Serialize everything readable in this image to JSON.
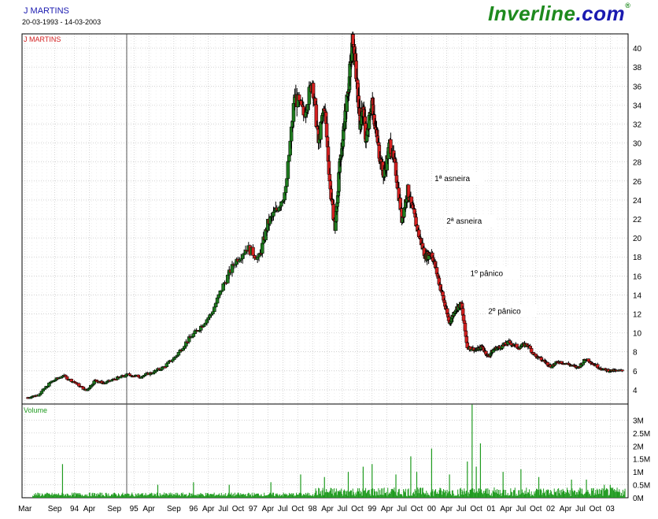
{
  "header": {
    "title": "J MARTINS",
    "date_range": "20-03-1993 - 14-03-2003",
    "logo_main": "Inverline",
    "logo_dot": ".com",
    "logo_mark": "®"
  },
  "chart_data": [
    {
      "type": "candlestick",
      "title": "J MARTINS",
      "ylim": [
        2.5,
        41.5
      ],
      "y_ticks": [
        "4",
        "6",
        "8",
        "10",
        "12",
        "14",
        "16",
        "18",
        "20",
        "22",
        "24",
        "26",
        "28",
        "30",
        "32",
        "34",
        "36",
        "38",
        "40"
      ],
      "x": [
        1993.22,
        1993.4,
        1993.6,
        1993.8,
        1994.0,
        1994.2,
        1994.35,
        1994.5,
        1994.7,
        1994.9,
        1995.1,
        1995.3,
        1995.5,
        1995.7,
        1995.9,
        1996.1,
        1996.3,
        1996.5,
        1996.7,
        1996.9,
        1997.1,
        1997.25,
        1997.4,
        1997.55,
        1997.7,
        1997.85,
        1998.0,
        1998.1,
        1998.2,
        1998.3,
        1998.38,
        1998.45,
        1998.5,
        1998.55,
        1998.62,
        1998.68,
        1998.75,
        1998.8,
        1998.85,
        1998.9,
        1999.0,
        1999.05,
        1999.12,
        1999.2,
        1999.3,
        1999.4,
        1999.5,
        1999.6,
        1999.7,
        1999.8,
        1999.9,
        2000.0,
        2000.1,
        2000.2,
        2000.3,
        2000.4,
        2000.5,
        2000.6,
        2000.75,
        2000.85,
        2000.95,
        2001.05,
        2001.15,
        2001.3,
        2001.45,
        2001.6,
        2001.75,
        2001.9,
        2002.0,
        2002.15,
        2002.3,
        2002.45,
        2002.6,
        2002.75,
        2002.9,
        2003.05,
        2003.2
      ],
      "close": [
        3.2,
        3.5,
        4.8,
        5.5,
        4.8,
        3.9,
        5.0,
        4.7,
        5.2,
        5.6,
        5.4,
        5.8,
        6.4,
        7.5,
        9.2,
        10.5,
        12.0,
        15.0,
        17.5,
        19.0,
        17.8,
        21.5,
        23.0,
        25.0,
        35.0,
        33.0,
        36.5,
        30.0,
        34.0,
        25.0,
        21.0,
        27.0,
        30.0,
        33.0,
        37.0,
        41.0,
        36.0,
        32.0,
        34.0,
        30.0,
        34.5,
        32.0,
        29.0,
        26.5,
        30.0,
        27.0,
        22.0,
        25.0,
        22.5,
        20.0,
        18.0,
        18.5,
        16.0,
        13.5,
        11.0,
        12.5,
        13.0,
        8.5,
        8.2,
        8.5,
        7.5,
        8.3,
        8.5,
        9.0,
        8.5,
        8.8,
        7.5,
        7.0,
        6.5,
        7.0,
        6.7,
        6.3,
        7.3,
        6.6,
        6.1,
        6.0,
        6.0
      ],
      "volume_panel": {
        "label": "Volume",
        "y_ticks": [
          "0M",
          "0.5M",
          "1M",
          "1.5M",
          "2M",
          "2.5M",
          "3M"
        ],
        "ylim": [
          0,
          3.5
        ],
        "spikes": [
          [
            1993.8,
            1.3
          ],
          [
            1995.4,
            0.5
          ],
          [
            1996.0,
            0.6
          ],
          [
            1996.6,
            0.5
          ],
          [
            1997.3,
            0.6
          ],
          [
            1997.8,
            0.9
          ],
          [
            1998.2,
            0.8
          ],
          [
            1998.6,
            1.0
          ],
          [
            1998.85,
            1.2
          ],
          [
            1999.0,
            1.3
          ],
          [
            1999.4,
            0.9
          ],
          [
            1999.65,
            1.6
          ],
          [
            1999.75,
            1.0
          ],
          [
            2000.0,
            1.9
          ],
          [
            2000.3,
            0.9
          ],
          [
            2000.6,
            1.4
          ],
          [
            2000.68,
            3.6
          ],
          [
            2000.75,
            1.2
          ],
          [
            2000.82,
            2.1
          ],
          [
            2001.2,
            1.0
          ],
          [
            2001.5,
            1.1
          ],
          [
            2001.8,
            0.8
          ],
          [
            2002.35,
            0.7
          ],
          [
            2002.6,
            0.7
          ],
          [
            2002.9,
            0.5
          ],
          [
            2003.0,
            0.5
          ]
        ]
      },
      "x_tick_labels": [
        {
          "x": 1993.17,
          "label": "Mar"
        },
        {
          "x": 1993.67,
          "label": "Sep"
        },
        {
          "x": 1994.0,
          "label": "94"
        },
        {
          "x": 1994.25,
          "label": "Apr"
        },
        {
          "x": 1994.67,
          "label": "Sep"
        },
        {
          "x": 1995.0,
          "label": "95"
        },
        {
          "x": 1995.25,
          "label": "Apr"
        },
        {
          "x": 1995.67,
          "label": "Sep"
        },
        {
          "x": 1996.0,
          "label": "96"
        },
        {
          "x": 1996.25,
          "label": "Apr"
        },
        {
          "x": 1996.5,
          "label": "Jul"
        },
        {
          "x": 1996.75,
          "label": "Oct"
        },
        {
          "x": 1997.0,
          "label": "97"
        },
        {
          "x": 1997.25,
          "label": "Apr"
        },
        {
          "x": 1997.5,
          "label": "Jul"
        },
        {
          "x": 1997.75,
          "label": "Oct"
        },
        {
          "x": 1998.0,
          "label": "98"
        },
        {
          "x": 1998.25,
          "label": "Apr"
        },
        {
          "x": 1998.5,
          "label": "Jul"
        },
        {
          "x": 1998.75,
          "label": "Oct"
        },
        {
          "x": 1999.0,
          "label": "99"
        },
        {
          "x": 1999.25,
          "label": "Apr"
        },
        {
          "x": 1999.5,
          "label": "Jul"
        },
        {
          "x": 1999.75,
          "label": "Oct"
        },
        {
          "x": 2000.0,
          "label": "00"
        },
        {
          "x": 2000.25,
          "label": "Apr"
        },
        {
          "x": 2000.5,
          "label": "Jul"
        },
        {
          "x": 2000.75,
          "label": "Oct"
        },
        {
          "x": 2001.0,
          "label": "01"
        },
        {
          "x": 2001.25,
          "label": "Apr"
        },
        {
          "x": 2001.5,
          "label": "Jul"
        },
        {
          "x": 2001.75,
          "label": "Oct"
        },
        {
          "x": 2002.0,
          "label": "02"
        },
        {
          "x": 2002.25,
          "label": "Apr"
        },
        {
          "x": 2002.5,
          "label": "Jul"
        },
        {
          "x": 2002.75,
          "label": "Oct"
        },
        {
          "x": 2003.0,
          "label": "03"
        }
      ],
      "annotations": [
        {
          "text": "1ª asneira",
          "x": 2000.05,
          "y": 26
        },
        {
          "text": "2ª asneira",
          "x": 2000.25,
          "y": 21.5
        },
        {
          "text": "1º pânico",
          "x": 2000.65,
          "y": 16
        },
        {
          "text": "2º pânico",
          "x": 2000.95,
          "y": 12
        }
      ],
      "colors": {
        "up": "#1e7a1e",
        "down": "#d42020",
        "grid": "#b8b8b8",
        "volume": "#1e9a1e",
        "label": "#d42020",
        "vol_label": "#1e9a1e"
      }
    }
  ]
}
